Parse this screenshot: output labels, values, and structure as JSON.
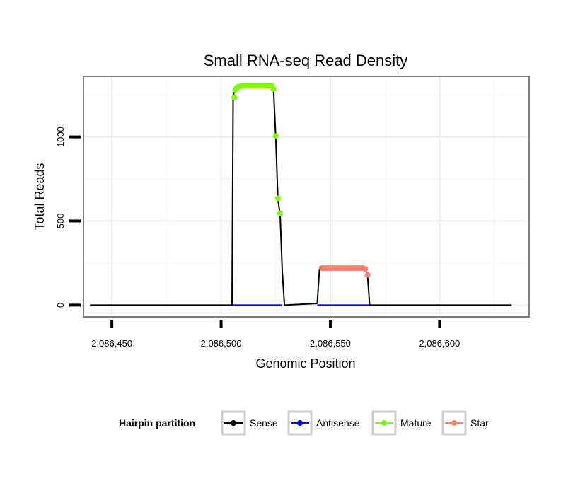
{
  "chart_data": {
    "type": "line",
    "title": "Small RNA-seq Read Density",
    "xlabel": "Genomic Position",
    "ylabel": "Total Reads",
    "xlim": [
      2086437,
      2086641
    ],
    "ylim": [
      -70,
      1360
    ],
    "x_ticks": [
      2086450,
      2086500,
      2086550,
      2086600
    ],
    "x_tick_labels": [
      "2,086,450",
      "2,086,500",
      "2,086,550",
      "2,086,600"
    ],
    "y_ticks": [
      0,
      500,
      1000
    ],
    "y_tick_labels": [
      "0",
      "500",
      "1000"
    ],
    "grid": true,
    "legend": {
      "title": "Hairpin partition",
      "position": "bottom",
      "entries": [
        {
          "label": "Sense",
          "color": "#000000"
        },
        {
          "label": "Antisense",
          "color": "#0000ff"
        },
        {
          "label": "Mature",
          "color": "#7cfc00"
        },
        {
          "label": "Star",
          "color": "#fa8072"
        }
      ]
    },
    "series": [
      {
        "name": "Sense",
        "color": "#000000",
        "x": [
          2086440,
          2086505,
          2086505.5,
          2086506,
          2086507,
          2086510,
          2086515,
          2086520,
          2086523,
          2086524,
          2086525,
          2086526,
          2086527,
          2086528,
          2086529,
          2086544,
          2086545,
          2086546,
          2086550,
          2086555,
          2086560,
          2086565,
          2086566,
          2086567,
          2086568,
          2086633
        ],
        "y": [
          0,
          0,
          1230,
          1280,
          1290,
          1295,
          1300,
          1300,
          1300,
          1280,
          1000,
          630,
          540,
          200,
          0,
          10,
          210,
          220,
          220,
          220,
          220,
          220,
          210,
          180,
          0,
          0
        ]
      },
      {
        "name": "Antisense",
        "color": "#0000ff",
        "x": [
          2086505,
          2086528,
          2086544,
          2086568
        ],
        "y": [
          0,
          0,
          0,
          0
        ],
        "segments": [
          [
            0,
            1
          ],
          [
            2,
            3
          ]
        ]
      },
      {
        "name": "Mature",
        "color": "#7cfc00",
        "x": [
          2086506,
          2086506.5,
          2086507,
          2086507.5,
          2086508,
          2086508.5,
          2086509,
          2086509.5,
          2086510,
          2086511,
          2086512,
          2086513,
          2086514,
          2086515,
          2086516,
          2086517,
          2086518,
          2086519,
          2086520,
          2086521,
          2086522,
          2086523,
          2086524,
          2086525,
          2086526,
          2086527
        ],
        "y": [
          1235,
          1280,
          1290,
          1295,
          1298,
          1300,
          1302,
          1303,
          1305,
          1305,
          1305,
          1305,
          1305,
          1305,
          1305,
          1305,
          1305,
          1305,
          1305,
          1305,
          1305,
          1305,
          1285,
          1005,
          635,
          545
        ]
      },
      {
        "name": "Star",
        "color": "#fa8072",
        "x": [
          2086546,
          2086547,
          2086548,
          2086549,
          2086550,
          2086551,
          2086552,
          2086553,
          2086554,
          2086555,
          2086556,
          2086557,
          2086558,
          2086559,
          2086560,
          2086561,
          2086562,
          2086563,
          2086564,
          2086565,
          2086566,
          2086567
        ],
        "y": [
          220,
          220,
          220,
          220,
          220,
          220,
          220,
          220,
          220,
          220,
          220,
          220,
          220,
          220,
          220,
          220,
          220,
          220,
          220,
          220,
          215,
          180
        ]
      }
    ]
  }
}
